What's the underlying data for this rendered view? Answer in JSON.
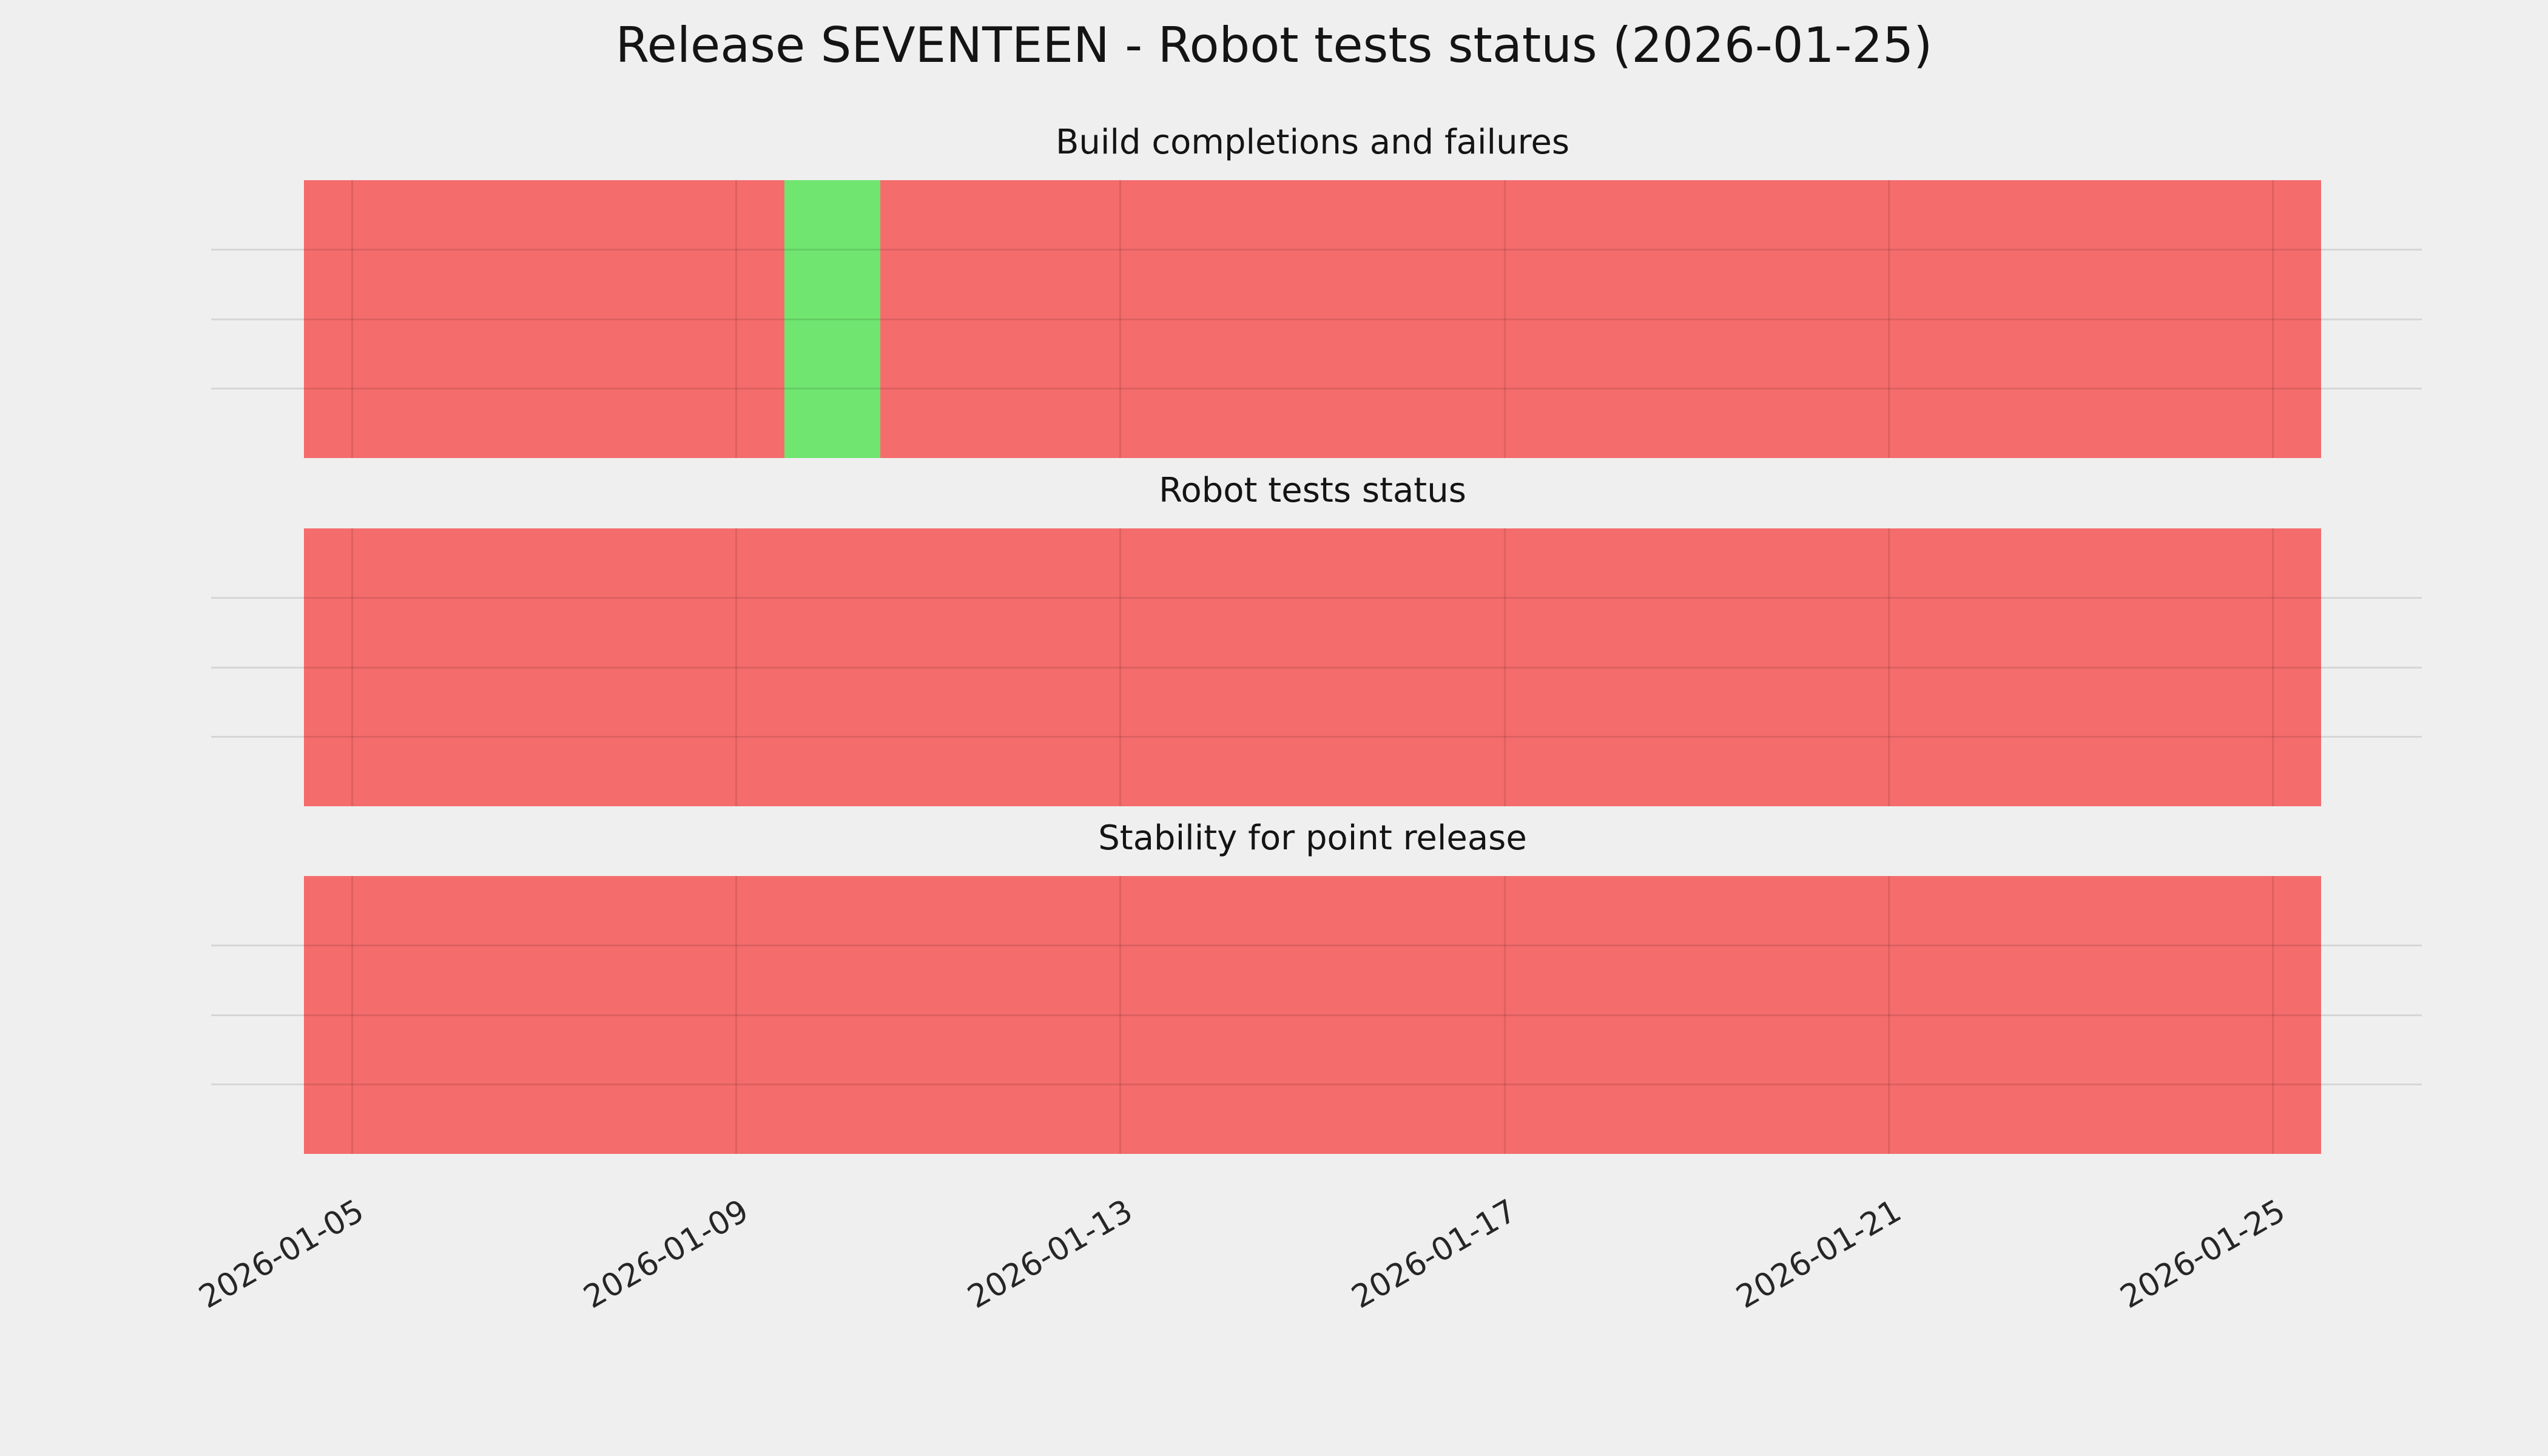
{
  "chart_data": {
    "type": "heatmap",
    "title": "Release SEVENTEEN - Robot tests status (2026-01-25)",
    "subtitle_panels": [
      "Build completions and failures",
      "Robot tests status",
      "Stability for point release"
    ],
    "legend": "none",
    "grid": true,
    "x_axis": {
      "start_date": "2026-01-05",
      "end_date": "2026-01-25",
      "min_offset": -0.5,
      "max_offset": 20.5,
      "tick_offsets": [
        0,
        4,
        8,
        12,
        16,
        20
      ],
      "tick_labels": [
        "2026-01-05",
        "2026-01-09",
        "2026-01-13",
        "2026-01-17",
        "2026-01-21",
        "2026-01-25"
      ]
    },
    "dates": [
      "2026-01-05",
      "2026-01-06",
      "2026-01-07",
      "2026-01-08",
      "2026-01-09",
      "2026-01-10",
      "2026-01-11",
      "2026-01-12",
      "2026-01-13",
      "2026-01-14",
      "2026-01-15",
      "2026-01-16",
      "2026-01-17",
      "2026-01-18",
      "2026-01-19",
      "2026-01-20",
      "2026-01-21",
      "2026-01-22",
      "2026-01-23",
      "2026-01-24",
      "2026-01-25"
    ],
    "status_colors": {
      "fail": "#f56c6c",
      "pass": "#70e570"
    },
    "panels": [
      {
        "title": "Build completions and failures",
        "statuses": [
          "fail",
          "fail",
          "fail",
          "fail",
          "fail",
          "pass",
          "fail",
          "fail",
          "fail",
          "fail",
          "fail",
          "fail",
          "fail",
          "fail",
          "fail",
          "fail",
          "fail",
          "fail",
          "fail",
          "fail",
          "fail"
        ]
      },
      {
        "title": "Robot tests status",
        "statuses": [
          "fail",
          "fail",
          "fail",
          "fail",
          "fail",
          "fail",
          "fail",
          "fail",
          "fail",
          "fail",
          "fail",
          "fail",
          "fail",
          "fail",
          "fail",
          "fail",
          "fail",
          "fail",
          "fail",
          "fail",
          "fail"
        ]
      },
      {
        "title": "Stability for point release",
        "statuses": [
          "fail",
          "fail",
          "fail",
          "fail",
          "fail",
          "fail",
          "fail",
          "fail",
          "fail",
          "fail",
          "fail",
          "fail",
          "fail",
          "fail",
          "fail",
          "fail",
          "fail",
          "fail",
          "fail",
          "fail",
          "fail"
        ]
      }
    ]
  }
}
